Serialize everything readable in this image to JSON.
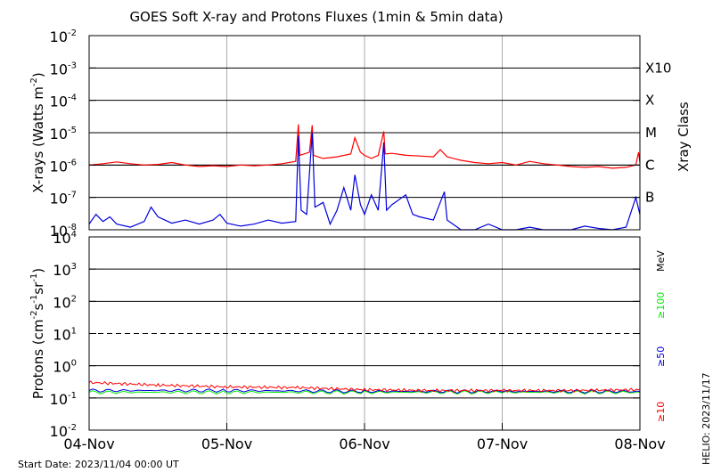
{
  "title": "GOES Soft X-ray and Protons Fluxes   (1min & 5min data)",
  "start_date": "Start Date: 2023/11/04 00:00 UT",
  "helio_stamp": "HELIO: 2023/11/17",
  "colors": {
    "xray_long": "#ff0000",
    "xray_short": "#0000dd",
    "p10": "#ff0000",
    "p50": "#0000dd",
    "p100": "#00ee00",
    "vgrid": "#aaaaaa"
  },
  "chart_data": [
    {
      "type": "line",
      "panel": "xray",
      "ylabel_base": "X-rays (Watts m",
      "ylabel_exp": "-2",
      "ylabel_end": ")",
      "yscale": "log",
      "ylim": [
        1e-08,
        0.01
      ],
      "y_tick_labels": [
        {
          "value": 0.01,
          "base": "10",
          "exp": "-2"
        },
        {
          "value": 0.001,
          "base": "10",
          "exp": "-3"
        },
        {
          "value": 0.0001,
          "base": "10",
          "exp": "-4"
        },
        {
          "value": 1e-05,
          "base": "10",
          "exp": "-5"
        },
        {
          "value": 1e-06,
          "base": "10",
          "exp": "-6"
        },
        {
          "value": 1e-07,
          "base": "10",
          "exp": "-7"
        },
        {
          "value": 1e-08,
          "base": "10",
          "exp": "-8"
        }
      ],
      "right_axis_label": "Xray Class",
      "flare_classes": [
        {
          "label": "X10",
          "value": 0.001
        },
        {
          "label": "X",
          "value": 0.0001
        },
        {
          "label": "M",
          "value": 1e-05
        },
        {
          "label": "C",
          "value": 1e-06
        },
        {
          "label": "B",
          "value": 1e-07
        }
      ],
      "xlim_days": [
        0,
        4
      ],
      "series": [
        {
          "color_key": "xray_long",
          "points": [
            [
              0,
              1e-06
            ],
            [
              0.1,
              1.1e-06
            ],
            [
              0.2,
              1.25e-06
            ],
            [
              0.3,
              1.1e-06
            ],
            [
              0.4,
              1e-06
            ],
            [
              0.5,
              1.05e-06
            ],
            [
              0.6,
              1.2e-06
            ],
            [
              0.7,
              1e-06
            ],
            [
              0.8,
              9e-07
            ],
            [
              0.9,
              9.5e-07
            ],
            [
              1.0,
              9e-07
            ],
            [
              1.1,
              1e-06
            ],
            [
              1.2,
              9.5e-07
            ],
            [
              1.3,
              1e-06
            ],
            [
              1.4,
              1.1e-06
            ],
            [
              1.5,
              1.3e-06
            ],
            [
              1.52,
              1.8e-05
            ],
            [
              1.53,
              2e-06
            ],
            [
              1.6,
              2.5e-06
            ],
            [
              1.62,
              1.7e-05
            ],
            [
              1.63,
              2e-06
            ],
            [
              1.7,
              1.6e-06
            ],
            [
              1.8,
              1.8e-06
            ],
            [
              1.9,
              2.2e-06
            ],
            [
              1.93,
              7e-06
            ],
            [
              1.97,
              2.5e-06
            ],
            [
              2.0,
              2e-06
            ],
            [
              2.05,
              1.6e-06
            ],
            [
              2.1,
              2e-06
            ],
            [
              2.14,
              1.1e-05
            ],
            [
              2.15,
              2.2e-06
            ],
            [
              2.2,
              2.3e-06
            ],
            [
              2.3,
              2e-06
            ],
            [
              2.4,
              1.9e-06
            ],
            [
              2.5,
              1.8e-06
            ],
            [
              2.55,
              3e-06
            ],
            [
              2.6,
              1.8e-06
            ],
            [
              2.7,
              1.4e-06
            ],
            [
              2.8,
              1.2e-06
            ],
            [
              2.9,
              1.1e-06
            ],
            [
              3.0,
              1.2e-06
            ],
            [
              3.1,
              1e-06
            ],
            [
              3.2,
              1.3e-06
            ],
            [
              3.3,
              1.1e-06
            ],
            [
              3.4,
              1e-06
            ],
            [
              3.5,
              9e-07
            ],
            [
              3.6,
              8.5e-07
            ],
            [
              3.7,
              9e-07
            ],
            [
              3.8,
              8e-07
            ],
            [
              3.9,
              8.5e-07
            ],
            [
              3.97,
              1e-06
            ],
            [
              3.99,
              2.5e-06
            ],
            [
              4.0,
              1.2e-06
            ]
          ]
        },
        {
          "color_key": "xray_short",
          "points": [
            [
              0,
              1.5e-08
            ],
            [
              0.05,
              3e-08
            ],
            [
              0.1,
              1.8e-08
            ],
            [
              0.15,
              2.5e-08
            ],
            [
              0.2,
              1.5e-08
            ],
            [
              0.3,
              1.2e-08
            ],
            [
              0.4,
              1.8e-08
            ],
            [
              0.45,
              5e-08
            ],
            [
              0.5,
              2.5e-08
            ],
            [
              0.6,
              1.6e-08
            ],
            [
              0.7,
              2e-08
            ],
            [
              0.8,
              1.5e-08
            ],
            [
              0.9,
              2e-08
            ],
            [
              0.95,
              3e-08
            ],
            [
              1.0,
              1.6e-08
            ],
            [
              1.1,
              1.3e-08
            ],
            [
              1.2,
              1.5e-08
            ],
            [
              1.3,
              2e-08
            ],
            [
              1.4,
              1.6e-08
            ],
            [
              1.5,
              1.8e-08
            ],
            [
              1.52,
              8e-06
            ],
            [
              1.54,
              4e-08
            ],
            [
              1.58,
              3e-08
            ],
            [
              1.62,
              1e-05
            ],
            [
              1.64,
              5e-08
            ],
            [
              1.7,
              7e-08
            ],
            [
              1.75,
              1.5e-08
            ],
            [
              1.8,
              4e-08
            ],
            [
              1.85,
              2e-07
            ],
            [
              1.9,
              4e-08
            ],
            [
              1.93,
              5e-07
            ],
            [
              1.97,
              6e-08
            ],
            [
              2.0,
              3e-08
            ],
            [
              2.05,
              1.2e-07
            ],
            [
              2.1,
              4e-08
            ],
            [
              2.14,
              5e-06
            ],
            [
              2.16,
              4e-08
            ],
            [
              2.2,
              6e-08
            ],
            [
              2.3,
              1.2e-07
            ],
            [
              2.35,
              3e-08
            ],
            [
              2.4,
              2.5e-08
            ],
            [
              2.5,
              2e-08
            ],
            [
              2.58,
              1.5e-07
            ],
            [
              2.6,
              2e-08
            ],
            [
              2.7,
              1e-08
            ],
            [
              2.8,
              1e-08
            ],
            [
              2.9,
              1.5e-08
            ],
            [
              3.0,
              1e-08
            ],
            [
              3.1,
              1e-08
            ],
            [
              3.2,
              1.2e-08
            ],
            [
              3.3,
              1e-08
            ],
            [
              3.4,
              1e-08
            ],
            [
              3.5,
              1e-08
            ],
            [
              3.6,
              1.3e-08
            ],
            [
              3.7,
              1.1e-08
            ],
            [
              3.8,
              1e-08
            ],
            [
              3.9,
              1.2e-08
            ],
            [
              3.97,
              1e-07
            ],
            [
              4.0,
              3e-08
            ]
          ]
        }
      ]
    },
    {
      "type": "line",
      "panel": "protons",
      "ylabel_base": "Protons (cm",
      "ylabel_exp1": "-2",
      "ylabel_mid1": "s",
      "ylabel_exp2": "-1",
      "ylabel_mid2": "sr",
      "ylabel_exp3": "-1",
      "ylabel_end": ")",
      "yscale": "log",
      "ylim": [
        0.01,
        10000.0
      ],
      "y_tick_labels": [
        {
          "value": 10000.0,
          "base": "10",
          "exp": "4"
        },
        {
          "value": 1000.0,
          "base": "10",
          "exp": "3"
        },
        {
          "value": 100.0,
          "base": "10",
          "exp": "2"
        },
        {
          "value": 10.0,
          "base": "10",
          "exp": "1"
        },
        {
          "value": 1.0,
          "base": "10",
          "exp": "0"
        },
        {
          "value": 0.1,
          "base": "10",
          "exp": "-1"
        },
        {
          "value": 0.01,
          "base": "10",
          "exp": "-2"
        }
      ],
      "dashed_threshold": 10,
      "unit_label": "MeV",
      "energy_labels": [
        {
          "label": "≥100",
          "color_key": "p100"
        },
        {
          "label": "≥50",
          "color_key": "p50"
        },
        {
          "label": "≥10",
          "color_key": "p10"
        }
      ],
      "x_tick_labels": [
        "04-Nov",
        "05-Nov",
        "06-Nov",
        "07-Nov",
        "08-Nov"
      ],
      "xlim_days": [
        0,
        4
      ],
      "series": [
        {
          "name": "≥10",
          "color_key": "p10",
          "points": [
            [
              0,
              0.3
            ],
            [
              0.5,
              0.25
            ],
            [
              1.0,
              0.22
            ],
            [
              1.5,
              0.21
            ],
            [
              2.0,
              0.18
            ],
            [
              2.5,
              0.17
            ],
            [
              3.0,
              0.17
            ],
            [
              3.5,
              0.17
            ],
            [
              4.0,
              0.18
            ]
          ]
        },
        {
          "name": "≥50",
          "color_key": "p50",
          "points": [
            [
              0,
              0.17
            ],
            [
              1.0,
              0.17
            ],
            [
              2.0,
              0.16
            ],
            [
              3.0,
              0.16
            ],
            [
              4.0,
              0.16
            ]
          ]
        },
        {
          "name": "≥100",
          "color_key": "p100",
          "points": [
            [
              0,
              0.15
            ],
            [
              1.0,
              0.15
            ],
            [
              2.0,
              0.15
            ],
            [
              3.0,
              0.15
            ],
            [
              4.0,
              0.15
            ]
          ]
        }
      ]
    }
  ]
}
